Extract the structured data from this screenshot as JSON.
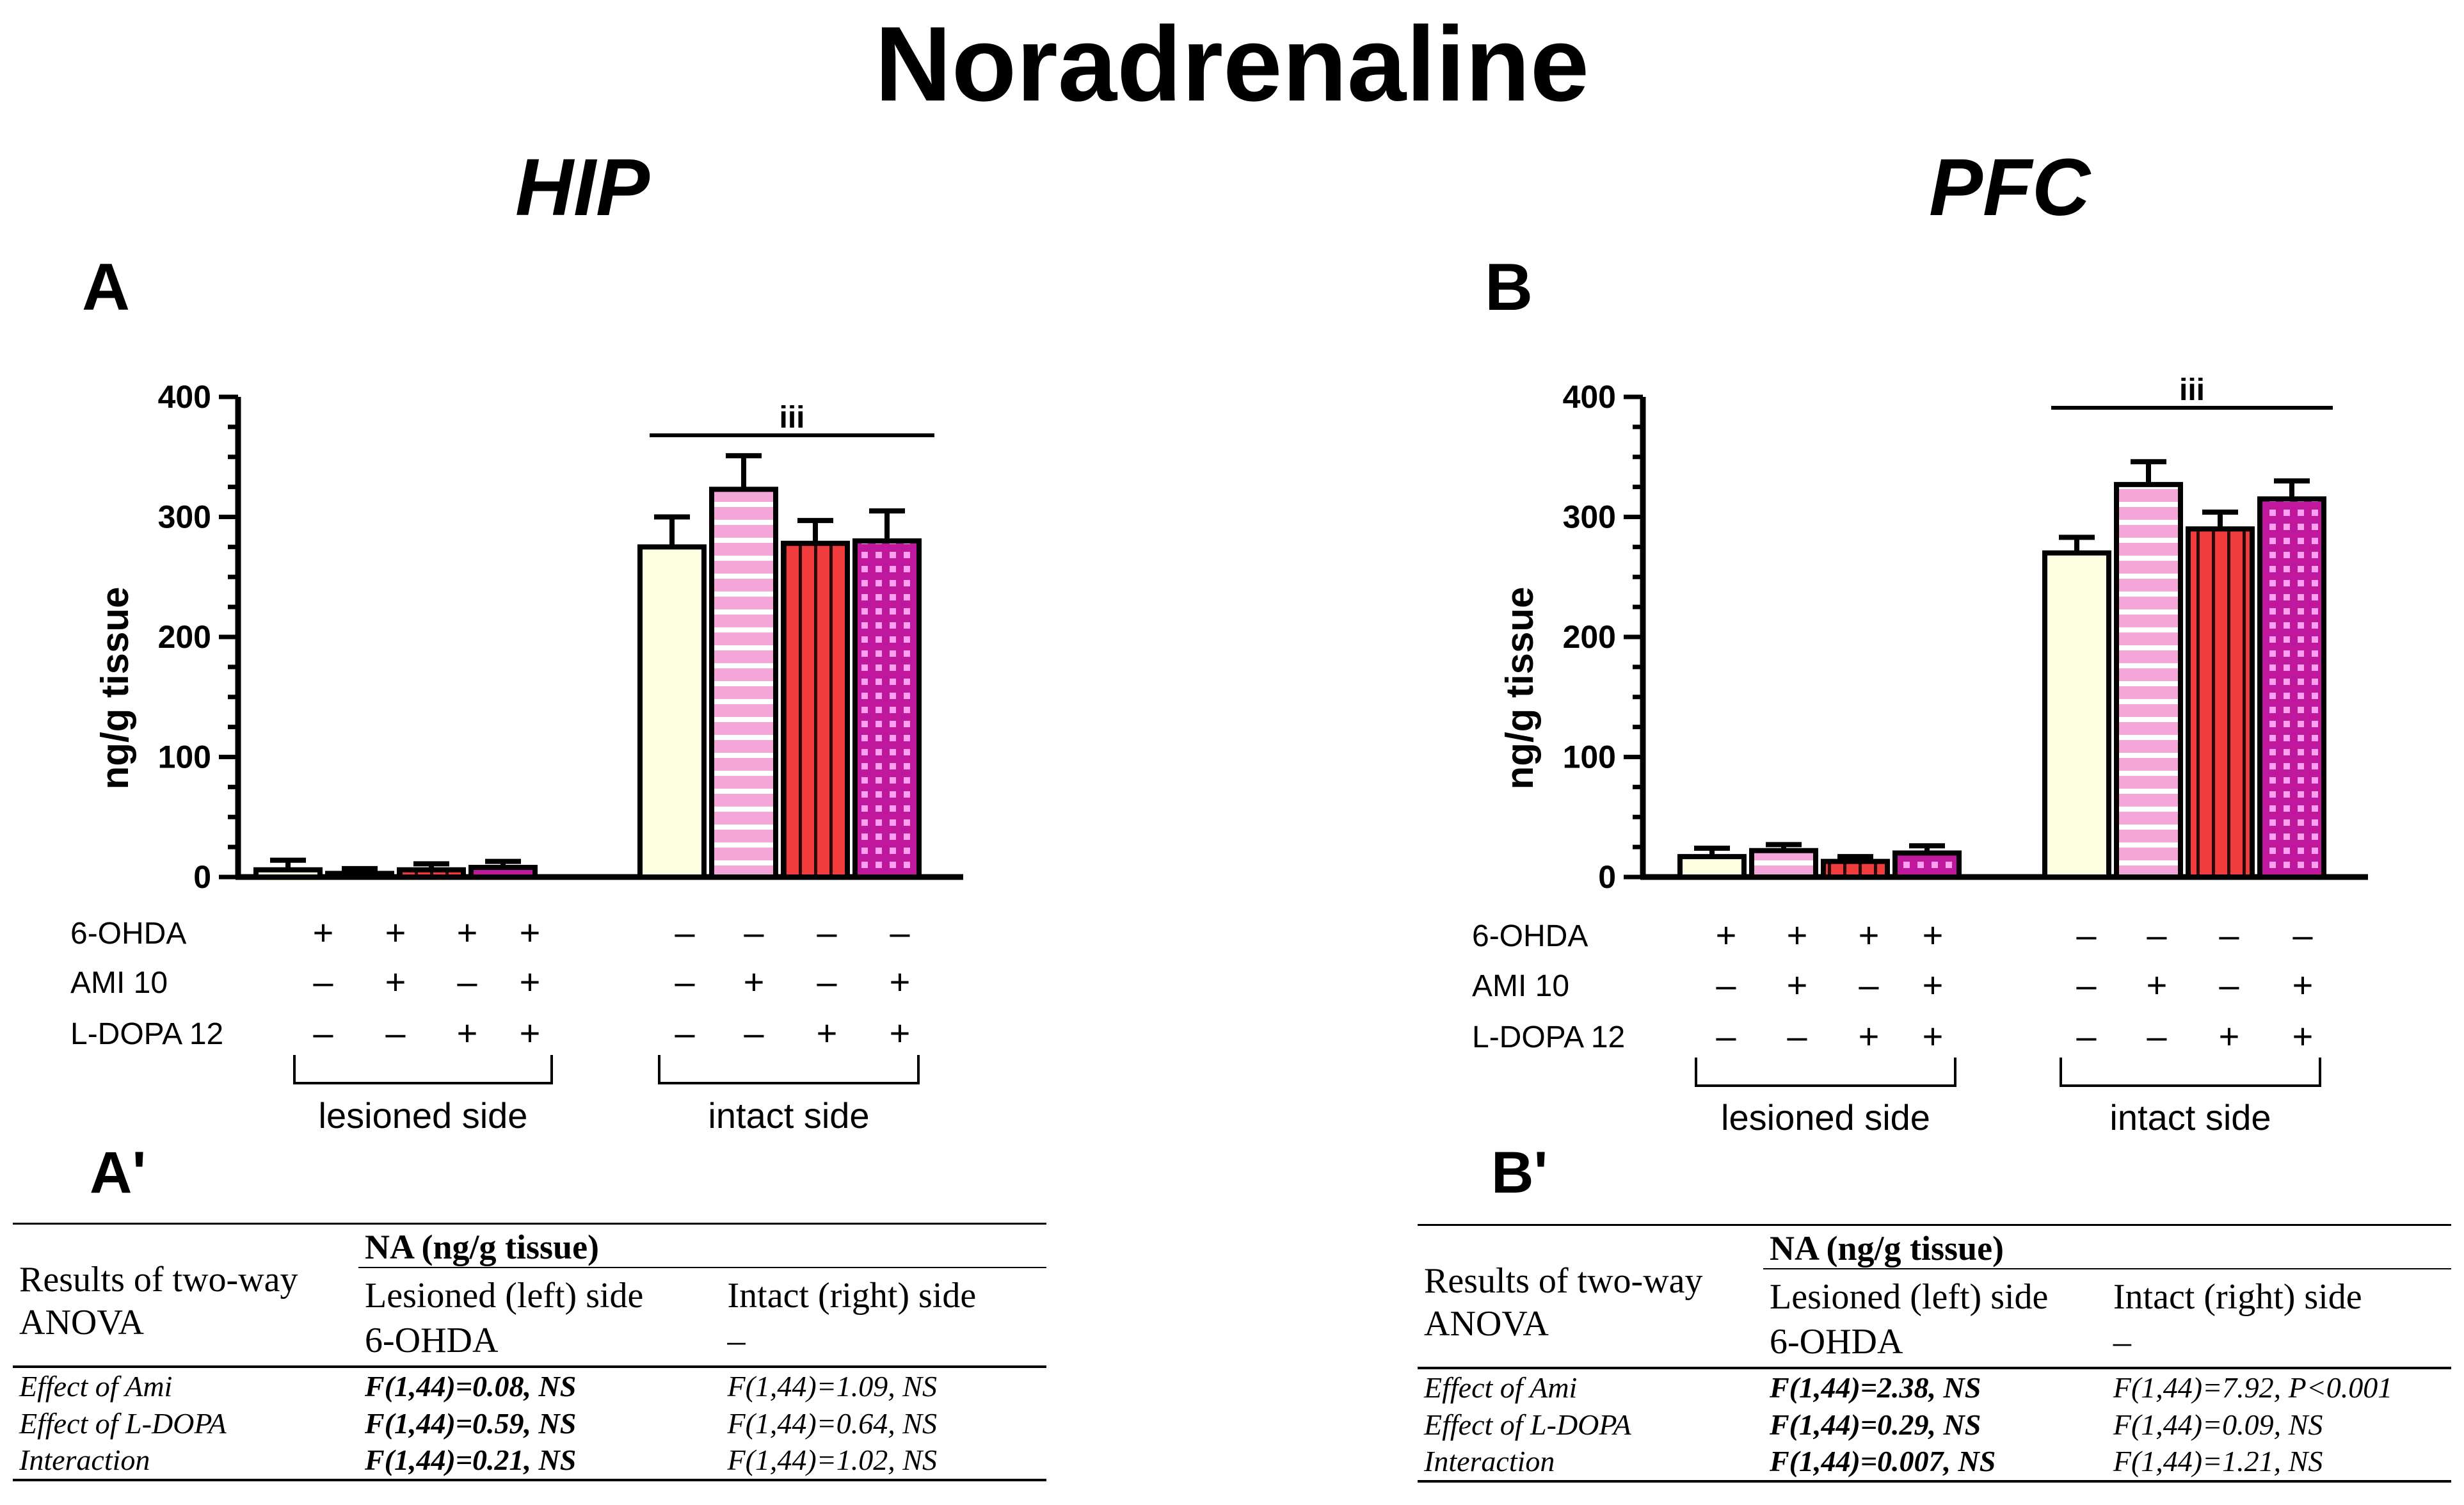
{
  "title": "Noradrenaline",
  "panels": [
    {
      "region": "HIP",
      "letter": "A",
      "table_letter": "A'",
      "chart_data": {
        "type": "bar",
        "ylabel": "ng/g tissue",
        "ylim": [
          0,
          400
        ],
        "yticks": [
          0,
          100,
          200,
          300,
          400
        ],
        "categories": [
          "lesioned 6-OHDA",
          "lesioned AMI 10",
          "lesioned L-DOPA 12",
          "lesioned AMI 10 + L-DOPA 12",
          "intact control",
          "intact AMI 10",
          "intact L-DOPA 12",
          "intact AMI 10 + L-DOPA 12"
        ],
        "values": [
          6,
          3,
          6,
          8,
          275,
          323,
          278,
          280
        ],
        "errors": [
          8,
          4,
          5,
          5,
          25,
          28,
          19,
          25
        ],
        "significance": {
          "label": "iii",
          "spans": "intact side"
        },
        "treatments": [
          {
            "label": "6-OHDA",
            "signs": [
              "+",
              "+",
              "+",
              "+",
              "–",
              "–",
              "–",
              "–"
            ]
          },
          {
            "label": "AMI 10",
            "signs": [
              "–",
              "+",
              "–",
              "+",
              "–",
              "+",
              "–",
              "+"
            ]
          },
          {
            "label": "L-DOPA 12",
            "signs": [
              "–",
              "–",
              "+",
              "+",
              "–",
              "–",
              "+",
              "+"
            ]
          }
        ],
        "groups": [
          "lesioned side",
          "intact side"
        ]
      },
      "table": {
        "row_label": "Results of two-way ANOVA",
        "header": "NA (ng/g tissue)",
        "col1": "Lesioned (left) side",
        "col1_sub": "6-OHDA",
        "col2": "Intact (right) side",
        "col2_sub": "–",
        "rows": [
          {
            "label": "Effect of Ami",
            "lesioned": "F(1,44)=0.08, NS",
            "intact": "F(1,44)=1.09, NS"
          },
          {
            "label": "Effect of L-DOPA",
            "lesioned": "F(1,44)=0.59, NS",
            "intact": "F(1,44)=0.64, NS"
          },
          {
            "label": "Interaction",
            "lesioned": "F(1,44)=0.21, NS",
            "intact": "F(1,44)=1.02, NS"
          }
        ]
      }
    },
    {
      "region": "PFC",
      "letter": "B",
      "table_letter": "B'",
      "chart_data": {
        "type": "bar",
        "ylabel": "ng/g tissue",
        "ylim": [
          0,
          400
        ],
        "yticks": [
          0,
          100,
          200,
          300,
          400
        ],
        "categories": [
          "lesioned 6-OHDA",
          "lesioned AMI 10",
          "lesioned L-DOPA 12",
          "lesioned AMI 10 + L-DOPA 12",
          "intact control",
          "intact AMI 10",
          "intact L-DOPA 12",
          "intact AMI 10 + L-DOPA 12"
        ],
        "values": [
          17,
          22,
          13,
          20,
          270,
          327,
          290,
          315
        ],
        "errors": [
          7,
          5,
          4,
          6,
          13,
          19,
          14,
          15
        ],
        "significance": {
          "label": "iii",
          "spans": "intact side"
        },
        "treatments": [
          {
            "label": "6-OHDA",
            "signs": [
              "+",
              "+",
              "+",
              "+",
              "–",
              "–",
              "–",
              "–"
            ]
          },
          {
            "label": "AMI 10",
            "signs": [
              "–",
              "+",
              "–",
              "+",
              "–",
              "+",
              "–",
              "+"
            ]
          },
          {
            "label": "L-DOPA 12",
            "signs": [
              "–",
              "–",
              "+",
              "+",
              "–",
              "–",
              "+",
              "+"
            ]
          }
        ],
        "groups": [
          "lesioned side",
          "intact side"
        ]
      },
      "table": {
        "row_label": "Results of two-way ANOVA",
        "header": "NA (ng/g tissue)",
        "col1": "Lesioned (left) side",
        "col1_sub": "6-OHDA",
        "col2": "Intact (right) side",
        "col2_sub": "–",
        "rows": [
          {
            "label": "Effect of Ami",
            "lesioned": "F(1,44)=2.38, NS",
            "intact": "F(1,44)=7.92, P<0.001"
          },
          {
            "label": "Effect of L-DOPA",
            "lesioned": "F(1,44)=0.29, NS",
            "intact": "F(1,44)=0.09, NS"
          },
          {
            "label": "Interaction",
            "lesioned": "F(1,44)=0.007, NS",
            "intact": "F(1,44)=1.21, NS"
          }
        ]
      }
    }
  ],
  "bar_styles": [
    {
      "pattern": "solid",
      "fill": "#fefee0"
    },
    {
      "pattern": "horizontal-stripes",
      "fill": "#f4a6d9"
    },
    {
      "pattern": "vertical-stripes",
      "fill": "#f03c3c"
    },
    {
      "pattern": "grid",
      "fill": "#c0189c"
    },
    {
      "pattern": "solid",
      "fill": "#fefee0"
    },
    {
      "pattern": "horizontal-stripes",
      "fill": "#f4a6d9"
    },
    {
      "pattern": "vertical-stripes",
      "fill": "#f03c3c"
    },
    {
      "pattern": "grid",
      "fill": "#c0189c"
    }
  ]
}
